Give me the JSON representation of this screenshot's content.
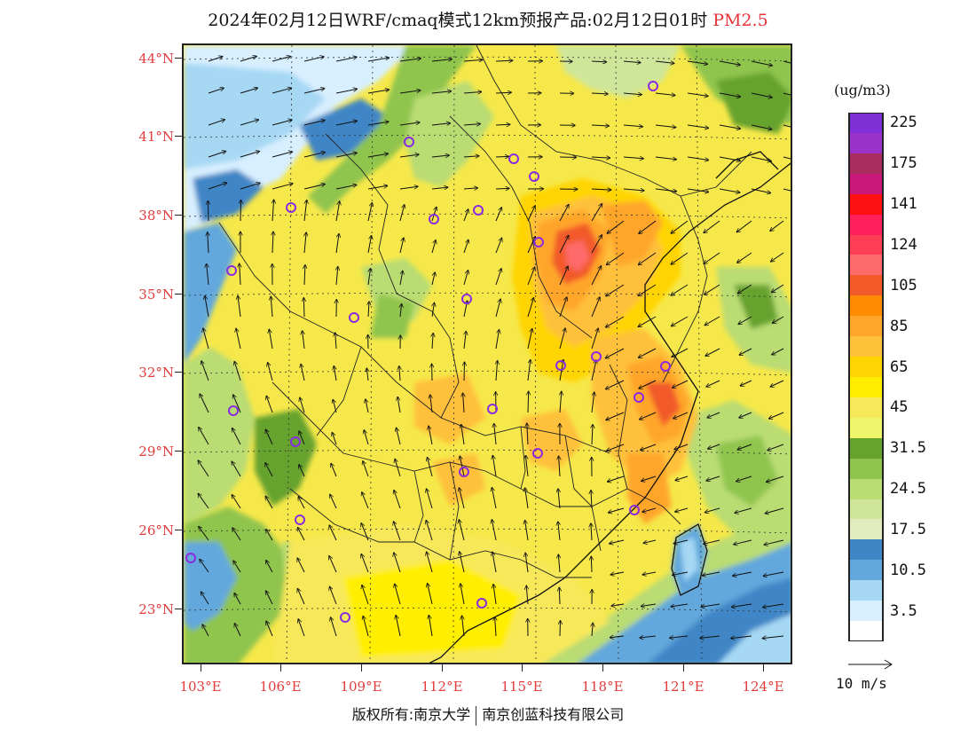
{
  "title": {
    "main": "2024年02月12日WRF/cmaq模式12km预报产品:02月12日01时",
    "pollutant": "PM2.5"
  },
  "axes": {
    "lat_labels": [
      "44°N",
      "41°N",
      "38°N",
      "35°N",
      "32°N",
      "29°N",
      "26°N",
      "23°N"
    ],
    "lon_labels": [
      "103°E",
      "106°E",
      "109°E",
      "112°E",
      "115°E",
      "118°E",
      "121°E",
      "124°E"
    ]
  },
  "legend": {
    "unit": "(ug/m3)",
    "bins": [
      {
        "color": "#7f2fd6",
        "label": "225"
      },
      {
        "color": "#9a33cc",
        "label": ""
      },
      {
        "color": "#a82c5e",
        "label": "175"
      },
      {
        "color": "#c8187a",
        "label": ""
      },
      {
        "color": "#ff1010",
        "label": "141"
      },
      {
        "color": "#ff1f5a",
        "label": ""
      },
      {
        "color": "#ff3d55",
        "label": "124"
      },
      {
        "color": "#ff6a6a",
        "label": ""
      },
      {
        "color": "#f25a2a",
        "label": "105"
      },
      {
        "color": "#ff8c00",
        "label": ""
      },
      {
        "color": "#ffa62a",
        "label": "85"
      },
      {
        "color": "#ffc03a",
        "label": ""
      },
      {
        "color": "#ffd400",
        "label": "65"
      },
      {
        "color": "#ffee00",
        "label": ""
      },
      {
        "color": "#f7e85a",
        "label": "45"
      },
      {
        "color": "#eef56a",
        "label": ""
      },
      {
        "color": "#66a22e",
        "label": "31.5"
      },
      {
        "color": "#8fc44e",
        "label": ""
      },
      {
        "color": "#b9dc73",
        "label": "24.5"
      },
      {
        "color": "#cfe69a",
        "label": ""
      },
      {
        "color": "#e2ebc0",
        "label": "17.5"
      },
      {
        "color": "#3f86c6",
        "label": ""
      },
      {
        "color": "#62a8dc",
        "label": "10.5"
      },
      {
        "color": "#a6d8f4",
        "label": ""
      },
      {
        "color": "#d8efff",
        "label": "3.5"
      },
      {
        "color": "#ffffff",
        "label": ""
      }
    ]
  },
  "wind_reference": "10 m/s",
  "footer": {
    "left": "版权所有:南京大学",
    "right": "南京创蓝科技有限公司"
  },
  "colors": {
    "axis_label": "#e23c3c",
    "pm_title": "#e8333a",
    "station_marker": "#8a2be2"
  }
}
